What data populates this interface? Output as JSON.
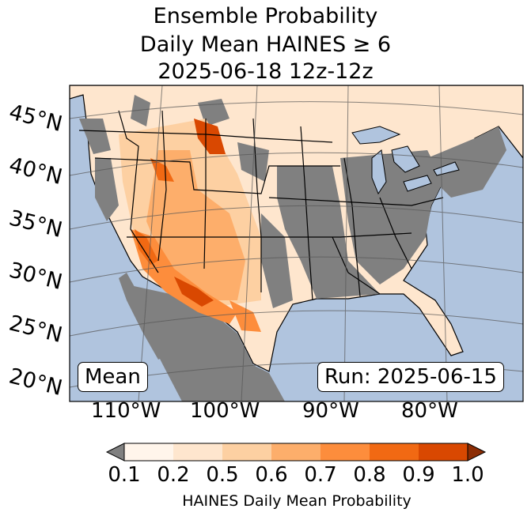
{
  "title": {
    "line1": "Ensemble Probability",
    "line2": "Daily Mean HAINES ≥ 6",
    "line3": "2025-06-18 12z-12z"
  },
  "map": {
    "lat_labels": [
      "45°N",
      "40°N",
      "35°N",
      "30°N",
      "25°N",
      "20°N"
    ],
    "lon_labels": [
      "110°W",
      "100°W",
      "90°W",
      "80°W"
    ],
    "stat_label": "Mean",
    "run_label": "Run: 2025-06-15",
    "colors": {
      "ocean": "#b0c4de",
      "no_data": "#808080",
      "lakes": "#b0c4de"
    }
  },
  "colorbar": {
    "ticks": [
      "0.1",
      "0.2",
      "0.5",
      "0.6",
      "0.7",
      "0.8",
      "0.9",
      "1.0"
    ],
    "label": "HAINES Daily Mean Probability",
    "colors": [
      "#808080",
      "#fff5eb",
      "#fee6ce",
      "#fdd0a2",
      "#fdae6b",
      "#fd8d3c",
      "#f16913",
      "#d94801",
      "#8c2d04"
    ]
  }
}
